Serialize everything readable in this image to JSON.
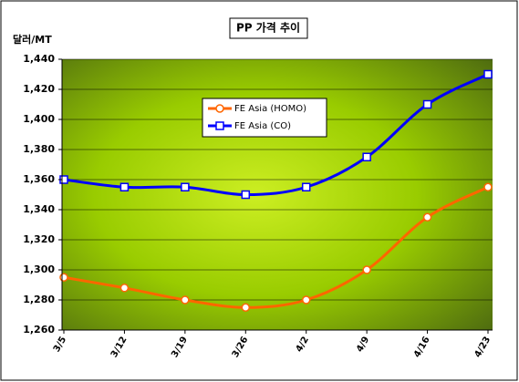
{
  "chart_data": {
    "type": "line",
    "title": "PP 가격 추이",
    "y_label": "달러/MT",
    "categories": [
      "3/5",
      "3/12",
      "3/19",
      "3/26",
      "4/2",
      "4/9",
      "4/16",
      "4/23"
    ],
    "series": [
      {
        "name": "FE Asia (HOMO)",
        "color": "#ff6600",
        "values": [
          1295,
          1288,
          1280,
          1275,
          1280,
          1300,
          1335,
          1355
        ]
      },
      {
        "name": "FE Asia (CO)",
        "color": "#0000ff",
        "values": [
          1360,
          1355,
          1355,
          1350,
          1355,
          1375,
          1410,
          1430
        ]
      }
    ],
    "ylim": [
      1260,
      1440
    ],
    "yticks": [
      {
        "value": 1260,
        "label": "1,260"
      },
      {
        "value": 1280,
        "label": "1,280"
      },
      {
        "value": 1300,
        "label": "1,300"
      },
      {
        "value": 1320,
        "label": "1,320"
      },
      {
        "value": 1340,
        "label": "1,340"
      },
      {
        "value": 1360,
        "label": "1,360"
      },
      {
        "value": 1380,
        "label": "1,380"
      },
      {
        "value": 1400,
        "label": "1,400"
      },
      {
        "value": 1420,
        "label": "1,420"
      },
      {
        "value": 1440,
        "label": "1,440"
      }
    ],
    "grid": true
  }
}
